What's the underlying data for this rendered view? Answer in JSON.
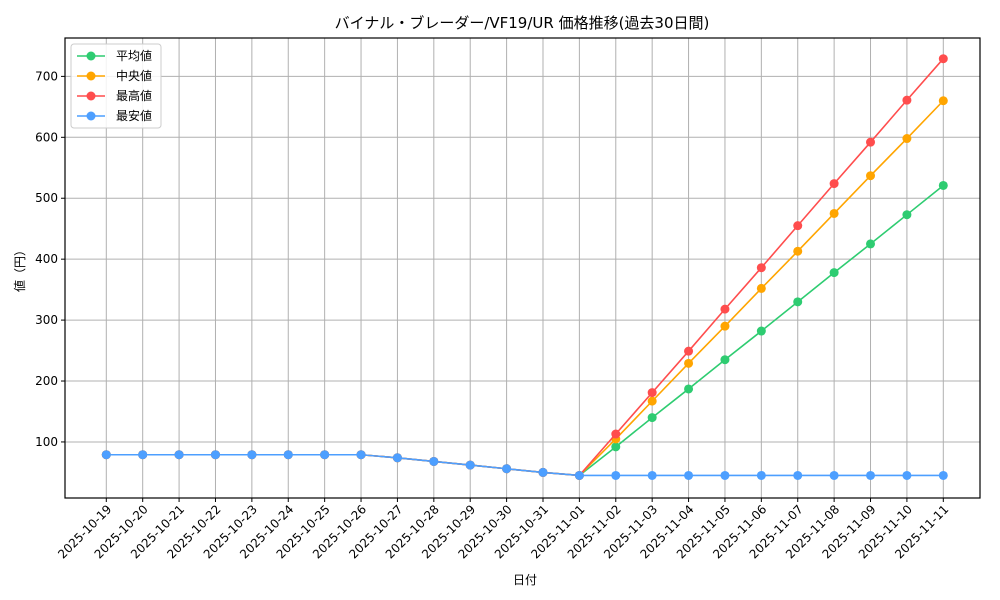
{
  "chart_data": {
    "type": "line",
    "title": "バイナル・ブレーダー/VF19/UR 価格推移(過去30日間)",
    "xlabel": "日付",
    "ylabel": "値（円）",
    "ylim": [
      8,
      763
    ],
    "yticks": [
      100,
      200,
      300,
      400,
      500,
      600,
      700
    ],
    "grid": true,
    "legend_position": "upper left",
    "x": [
      "2025-10-19",
      "2025-10-20",
      "2025-10-21",
      "2025-10-22",
      "2025-10-23",
      "2025-10-24",
      "2025-10-25",
      "2025-10-26",
      "2025-10-27",
      "2025-10-28",
      "2025-10-29",
      "2025-10-30",
      "2025-10-31",
      "2025-11-01",
      "2025-11-02",
      "2025-11-03",
      "2025-11-04",
      "2025-11-05",
      "2025-11-06",
      "2025-11-07",
      "2025-11-08",
      "2025-11-09",
      "2025-11-10",
      "2025-11-11"
    ],
    "series": [
      {
        "name": "平均値",
        "color": "#2ecc71",
        "values": [
          79,
          79,
          79,
          79,
          79,
          79,
          79,
          79,
          74,
          68,
          62,
          56,
          50,
          45,
          92,
          140,
          187,
          235,
          282,
          330,
          378,
          425,
          473,
          521
        ]
      },
      {
        "name": "中央値",
        "color": "#ffa500",
        "values": [
          79,
          79,
          79,
          79,
          79,
          79,
          79,
          79,
          74,
          68,
          62,
          56,
          50,
          45,
          105,
          167,
          229,
          290,
          352,
          413,
          475,
          537,
          598,
          660
        ]
      },
      {
        "name": "最高値",
        "color": "#ff4d4d",
        "values": [
          79,
          79,
          79,
          79,
          79,
          79,
          79,
          79,
          74,
          68,
          62,
          56,
          50,
          45,
          113,
          181,
          249,
          318,
          386,
          455,
          524,
          592,
          661,
          729
        ]
      },
      {
        "name": "最安値",
        "color": "#4d9fff",
        "values": [
          79,
          79,
          79,
          79,
          79,
          79,
          79,
          79,
          74,
          68,
          62,
          56,
          50,
          45,
          45,
          45,
          45,
          45,
          45,
          45,
          45,
          45,
          45,
          45
        ]
      }
    ]
  }
}
